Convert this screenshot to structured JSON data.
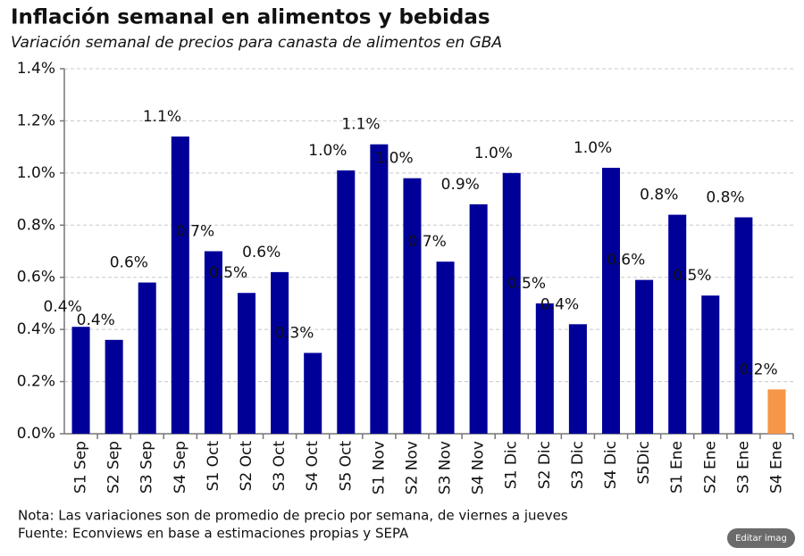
{
  "chart_data": {
    "type": "bar",
    "title": "Inflación semanal en alimentos y bebidas",
    "subtitle": "Variación semanal de precios para canasta de alimentos en GBA",
    "categories": [
      "S1 Sep",
      "S2 Sep",
      "S3 Sep",
      "S4 Sep",
      "S1 Oct",
      "S2 Oct",
      "S3 Oct",
      "S4 Oct",
      "S5 Oct",
      "S1 Nov",
      "S2 Nov",
      "S3 Nov",
      "S4 Nov",
      "S1 Dic",
      "S2 Dic",
      "S3 Dic",
      "S4 Dic",
      "S5Dic",
      "S1 Ene",
      "S2 Ene",
      "S3 Ene",
      "S4 Ene"
    ],
    "values": [
      0.41,
      0.36,
      0.58,
      1.14,
      0.7,
      0.54,
      0.62,
      0.31,
      1.01,
      1.11,
      0.98,
      0.66,
      0.88,
      1.0,
      0.5,
      0.42,
      1.02,
      0.59,
      0.84,
      0.53,
      0.83,
      0.17
    ],
    "value_labels": [
      "0.4%",
      "0.4%",
      "0.6%",
      "1.1%",
      "0.7%",
      "0.5%",
      "0.6%",
      "0.3%",
      "1.0%",
      "1.1%",
      "1.0%",
      "0.7%",
      "0.9%",
      "1.0%",
      "0.5%",
      "0.4%",
      "1.0%",
      "0.6%",
      "0.8%",
      "0.5%",
      "0.8%",
      "0.2%"
    ],
    "colors": [
      "#000099",
      "#000099",
      "#000099",
      "#000099",
      "#000099",
      "#000099",
      "#000099",
      "#000099",
      "#000099",
      "#000099",
      "#000099",
      "#000099",
      "#000099",
      "#000099",
      "#000099",
      "#000099",
      "#000099",
      "#000099",
      "#000099",
      "#000099",
      "#000099",
      "#f79646"
    ],
    "ylim": [
      0,
      1.4
    ],
    "yticks": [
      {
        "value": 0,
        "label": "0.0%"
      },
      {
        "value": 0.2,
        "label": "0.2%"
      },
      {
        "value": 0.4,
        "label": "0.4%"
      },
      {
        "value": 0.6,
        "label": "0.6%"
      },
      {
        "value": 0.8,
        "label": "0.8%"
      },
      {
        "value": 1.0,
        "label": "1.0%"
      },
      {
        "value": 1.2,
        "label": "1.2%"
      },
      {
        "value": 1.4,
        "label": "1.4%"
      }
    ],
    "grid": true,
    "notes": [
      "Nota: Las variaciones son de promedio de precio por semana, de viernes a jueves",
      "Fuente: Econviews en base a estimaciones propias  y SEPA"
    ]
  },
  "button": "Editar imag"
}
